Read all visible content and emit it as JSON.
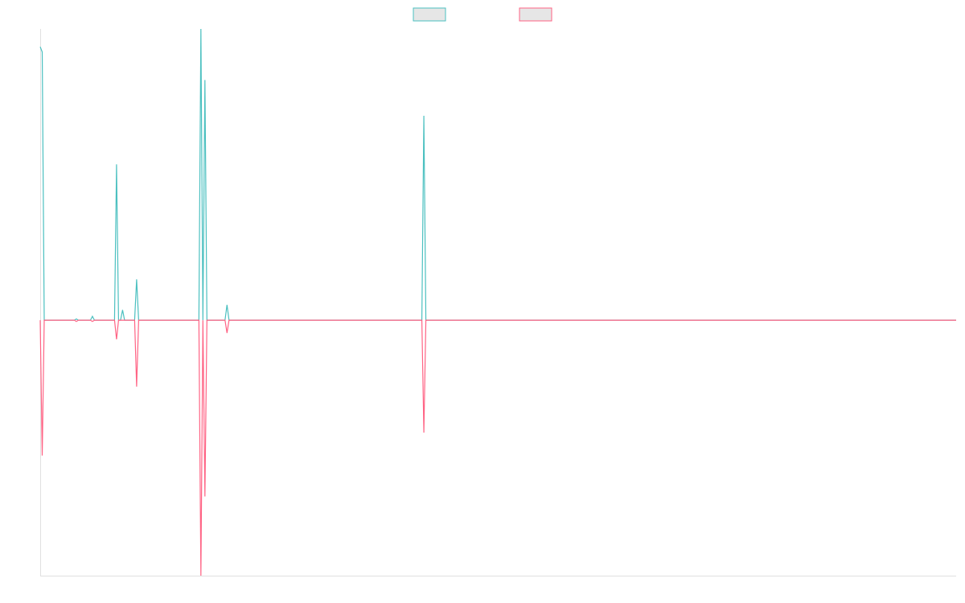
{
  "chart_data": {
    "type": "line",
    "x": [
      0,
      1,
      2,
      17,
      18,
      19,
      25,
      26,
      27,
      37,
      38,
      39,
      40,
      41,
      42,
      47,
      48,
      49,
      79,
      80,
      81,
      82,
      83,
      92,
      93,
      94,
      190,
      191,
      192,
      456
    ],
    "series": [
      {
        "color": "#4bc0c0",
        "values": [
          107,
          105,
          0,
          0,
          0.5,
          0,
          0,
          1.5,
          0,
          0,
          61,
          0,
          0,
          4,
          0,
          0,
          16,
          0,
          0,
          114,
          0,
          94,
          0,
          0,
          6,
          0,
          0,
          80,
          0,
          0
        ]
      },
      {
        "color": "#ff6384",
        "values": [
          0,
          -53,
          0,
          0,
          -0.5,
          0,
          0,
          -0.5,
          0,
          0,
          -7.5,
          0,
          0,
          0,
          0,
          0,
          -26,
          0,
          0,
          -100,
          0,
          -69,
          0,
          0,
          -5,
          0,
          0,
          -44,
          0,
          0
        ]
      }
    ],
    "xlim": [
      0,
      456
    ],
    "ylim": [
      -100,
      114
    ],
    "legend": "top"
  }
}
